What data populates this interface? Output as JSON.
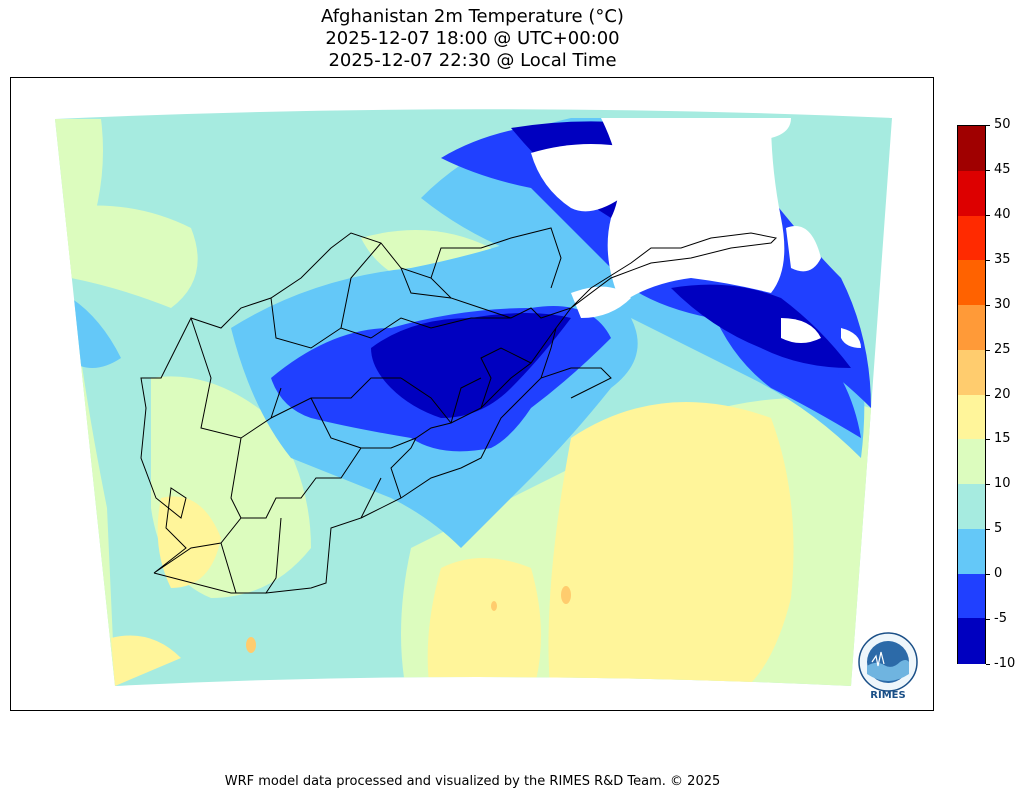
{
  "title": {
    "line1": "Afghanistan 2m Temperature (°C)",
    "line2": "2025-12-07 18:00 @ UTC+00:00",
    "line3": "2025-12-07 22:30 @ Local Time"
  },
  "colorbar": {
    "ticks": [
      "50",
      "45",
      "40",
      "35",
      "30",
      "25",
      "20",
      "15",
      "10",
      "5",
      "0",
      "-5",
      "-10"
    ],
    "colors": [
      "#a00000",
      "#dd0000",
      "#ff2a00",
      "#ff6200",
      "#ff9a38",
      "#ffcc6e",
      "#fff59a",
      "#dcfcbe",
      "#a6ebe0",
      "#64c8f8",
      "#2040ff",
      "#0000c0"
    ]
  },
  "logo": {
    "text": "RIMES",
    "icon": "rimes-logo-icon"
  },
  "footer": "WRF model data processed and visualized by the RIMES R&D Team. © 2025"
}
